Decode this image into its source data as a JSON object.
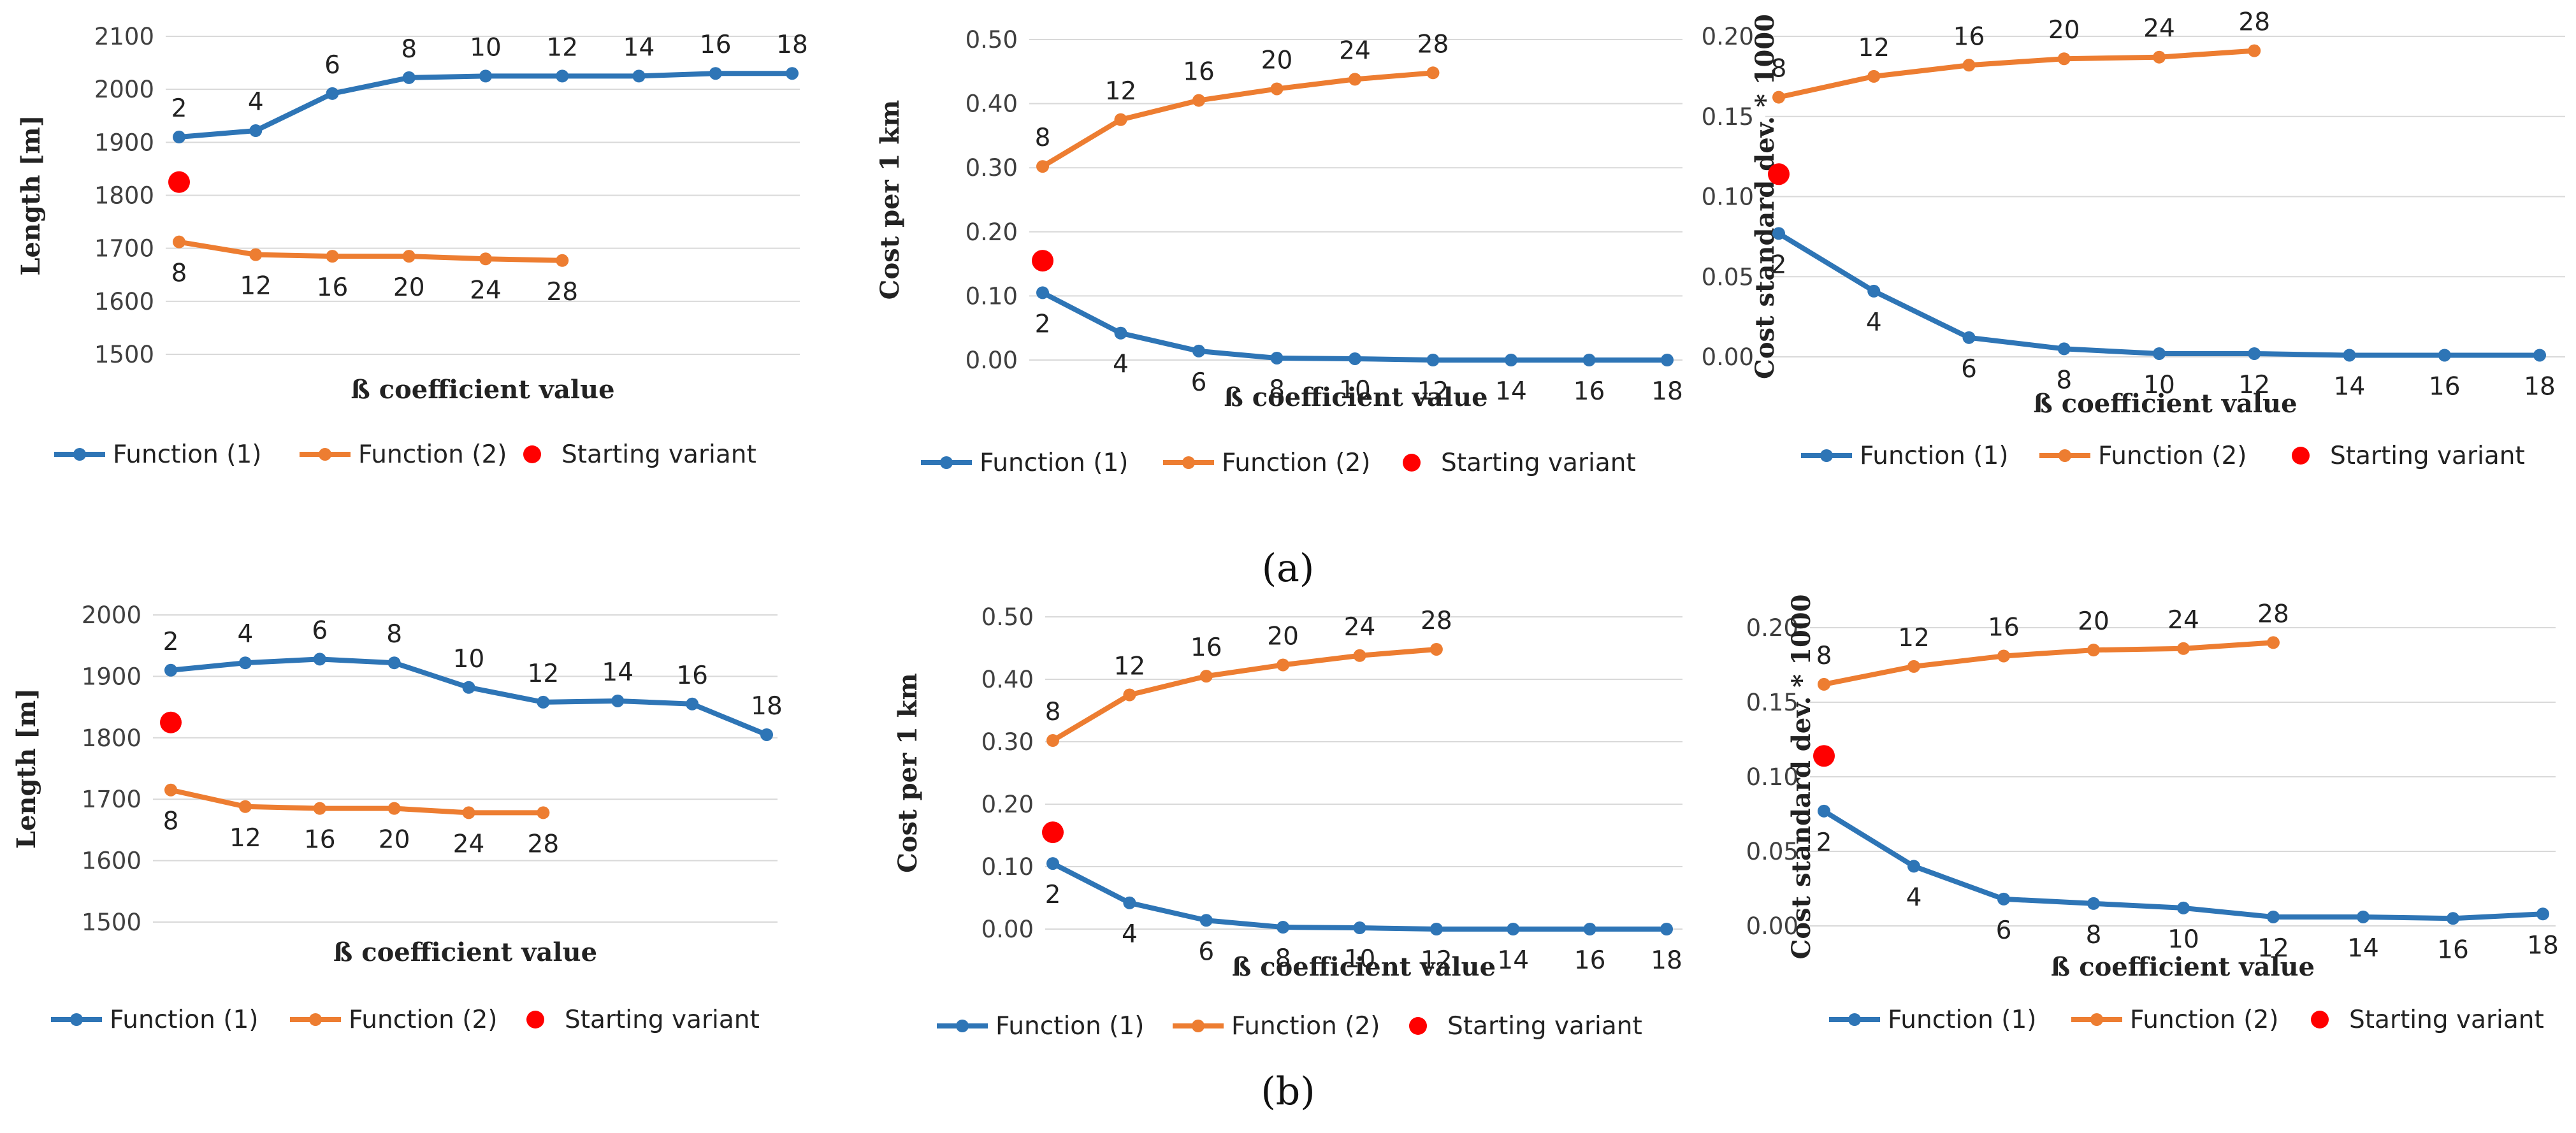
{
  "colors": {
    "function1": "#2e75b6",
    "function2": "#ed7d31",
    "start": "#ff0000"
  },
  "captions": [
    "(a)",
    "(b)"
  ],
  "chart_data": [
    {
      "type": "line",
      "panel": "a-1",
      "ylabel": "Length [m]",
      "xlabel": "ß coefficient value",
      "ylim": [
        1500,
        2100
      ],
      "yticks": [
        "1500",
        "1600",
        "1700",
        "1800",
        "1900",
        "2000",
        "2100"
      ],
      "series": [
        {
          "name": "Function (1)",
          "values": [
            1910,
            1922,
            1992,
            2022,
            2025,
            2025,
            2025,
            2030,
            2030
          ],
          "labels": [
            "2",
            "4",
            "6",
            "8",
            "10",
            "12",
            "14",
            "16",
            "18"
          ]
        },
        {
          "name": "Function (2)",
          "values": [
            1712,
            1688,
            1685,
            1685,
            1680,
            1677
          ],
          "labels": [
            "8",
            "12",
            "16",
            "20",
            "24",
            "28"
          ]
        },
        {
          "name": "Starting variant",
          "values": [
            1825
          ]
        }
      ],
      "legend": [
        "Function (1)",
        "Function (2)",
        "Starting variant"
      ]
    },
    {
      "type": "line",
      "panel": "a-2",
      "ylabel": "Cost per 1 km",
      "xlabel": "ß coefficient value",
      "ylim": [
        0,
        0.5
      ],
      "yticks": [
        "0.00",
        "0.10",
        "0.20",
        "0.30",
        "0.40",
        "0.50"
      ],
      "series": [
        {
          "name": "Function (1)",
          "values": [
            0.105,
            0.042,
            0.014,
            0.003,
            0.002,
            0.0,
            0.0,
            0.0,
            0.0
          ],
          "labels": [
            "2",
            "4",
            "6",
            "8",
            "10",
            "12",
            "14",
            "16",
            "18"
          ]
        },
        {
          "name": "Function (2)",
          "values": [
            0.302,
            0.375,
            0.405,
            0.423,
            0.438,
            0.448
          ],
          "labels": [
            "8",
            "12",
            "16",
            "20",
            "24",
            "28"
          ]
        },
        {
          "name": "Starting variant",
          "values": [
            0.155
          ]
        }
      ],
      "legend": [
        "Function (1)",
        "Function (2)",
        "Starting variant"
      ]
    },
    {
      "type": "line",
      "panel": "a-3",
      "ylabel": "Cost standard dev. * 1000",
      "xlabel": "ß coefficient value",
      "ylim": [
        0,
        0.2
      ],
      "yticks": [
        "0.00",
        "0.05",
        "0.10",
        "0.15",
        "0.20"
      ],
      "series": [
        {
          "name": "Function (1)",
          "values": [
            0.077,
            0.041,
            0.012,
            0.005,
            0.002,
            0.002,
            0.001,
            0.001,
            0.001
          ],
          "labels": [
            "2",
            "4",
            "6",
            "8",
            "10",
            "12",
            "14",
            "16",
            "18"
          ]
        },
        {
          "name": "Function (2)",
          "values": [
            0.162,
            0.175,
            0.182,
            0.186,
            0.187,
            0.191
          ],
          "labels": [
            "8",
            "12",
            "16",
            "20",
            "24",
            "28"
          ]
        },
        {
          "name": "Starting variant",
          "values": [
            0.114
          ]
        }
      ],
      "legend": [
        "Function (1)",
        "Function (2)",
        "Starting variant"
      ]
    },
    {
      "type": "line",
      "panel": "b-1",
      "ylabel": "Length [m]",
      "xlabel": "ß coefficient value",
      "ylim": [
        1500,
        2000
      ],
      "yticks": [
        "1500",
        "1600",
        "1700",
        "1800",
        "1900",
        "2000"
      ],
      "series": [
        {
          "name": "Function (1)",
          "values": [
            1910,
            1922,
            1928,
            1922,
            1882,
            1858,
            1860,
            1855,
            1805
          ],
          "labels": [
            "2",
            "4",
            "6",
            "8",
            "10",
            "12",
            "14",
            "16",
            "18"
          ]
        },
        {
          "name": "Function (2)",
          "values": [
            1715,
            1688,
            1685,
            1685,
            1678,
            1678
          ],
          "labels": [
            "8",
            "12",
            "16",
            "20",
            "24",
            "28"
          ]
        },
        {
          "name": "Starting variant",
          "values": [
            1825
          ]
        }
      ],
      "legend": [
        "Function (1)",
        "Function (2)",
        "Starting variant"
      ]
    },
    {
      "type": "line",
      "panel": "b-2",
      "ylabel": "Cost per 1 km",
      "xlabel": "ß coefficient value",
      "ylim": [
        0,
        0.5
      ],
      "yticks": [
        "0.00",
        "0.10",
        "0.20",
        "0.30",
        "0.40",
        "0.50"
      ],
      "series": [
        {
          "name": "Function (1)",
          "values": [
            0.105,
            0.042,
            0.014,
            0.003,
            0.002,
            0.0,
            0.0,
            0.0,
            0.0
          ],
          "labels": [
            "2",
            "4",
            "6",
            "8",
            "10",
            "12",
            "14",
            "16",
            "18"
          ]
        },
        {
          "name": "Function (2)",
          "values": [
            0.302,
            0.375,
            0.405,
            0.423,
            0.438,
            0.448
          ],
          "labels": [
            "8",
            "12",
            "16",
            "20",
            "24",
            "28"
          ]
        },
        {
          "name": "Starting variant",
          "values": [
            0.155
          ]
        }
      ],
      "legend": [
        "Function (1)",
        "Function (2)",
        "Starting variant"
      ]
    },
    {
      "type": "line",
      "panel": "b-3",
      "ylabel": "Cost standard dev. * 1000",
      "xlabel": "ß coefficient value",
      "ylim": [
        0,
        0.2
      ],
      "yticks": [
        "0.00",
        "0.05",
        "0.10",
        "0.15",
        "0.20"
      ],
      "series": [
        {
          "name": "Function (1)",
          "values": [
            0.077,
            0.04,
            0.018,
            0.015,
            0.012,
            0.006,
            0.006,
            0.005,
            0.008
          ],
          "labels": [
            "2",
            "4",
            "6",
            "8",
            "10",
            "12",
            "14",
            "16",
            "18"
          ]
        },
        {
          "name": "Function (2)",
          "values": [
            0.162,
            0.174,
            0.181,
            0.185,
            0.186,
            0.19
          ],
          "labels": [
            "8",
            "12",
            "16",
            "20",
            "24",
            "28"
          ]
        },
        {
          "name": "Starting variant",
          "values": [
            0.114
          ]
        }
      ],
      "legend": [
        "Function (1)",
        "Function (2)",
        "Starting variant"
      ]
    }
  ]
}
